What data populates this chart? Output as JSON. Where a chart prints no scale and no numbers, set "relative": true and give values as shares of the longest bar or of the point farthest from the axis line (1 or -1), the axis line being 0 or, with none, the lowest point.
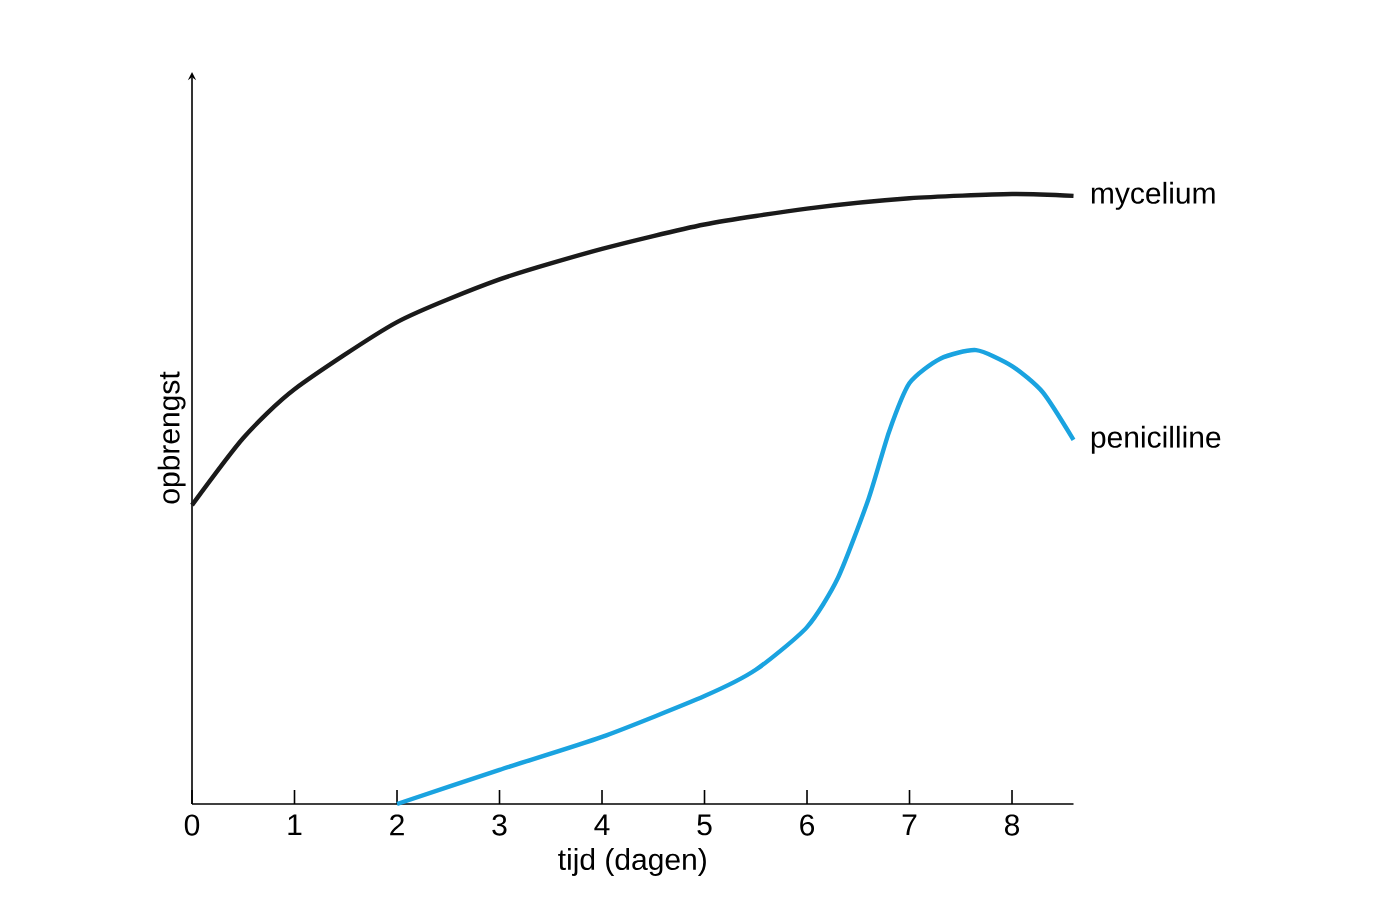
{
  "chart_data": {
    "type": "line",
    "relative": true,
    "xlabel": "tijd (dagen)",
    "ylabel": "opbrengst",
    "xlim": [
      0,
      8.6
    ],
    "xticks": [
      0,
      1,
      2,
      3,
      4,
      5,
      6,
      7,
      8
    ],
    "tick_labels": "x",
    "series": [
      {
        "name": "mycelium",
        "color": "#1a1a1a",
        "x": [
          0,
          0.5,
          1,
          2,
          3,
          4,
          5,
          6,
          7,
          8,
          8.6
        ],
        "values": [
          0.49,
          0.6,
          0.68,
          0.79,
          0.86,
          0.91,
          0.95,
          0.976,
          0.993,
          1.0,
          0.997
        ]
      },
      {
        "name": "penicilline",
        "color": "#1aa3e0",
        "x": [
          2,
          3,
          4,
          5,
          5.5,
          6,
          6.3,
          6.6,
          6.8,
          7,
          7.3,
          7.65,
          8,
          8.3,
          8.6
        ],
        "values": [
          0,
          0.056,
          0.11,
          0.177,
          0.22,
          0.29,
          0.37,
          0.5,
          0.61,
          0.69,
          0.73,
          0.744,
          0.718,
          0.675,
          0.597
        ]
      }
    ]
  }
}
